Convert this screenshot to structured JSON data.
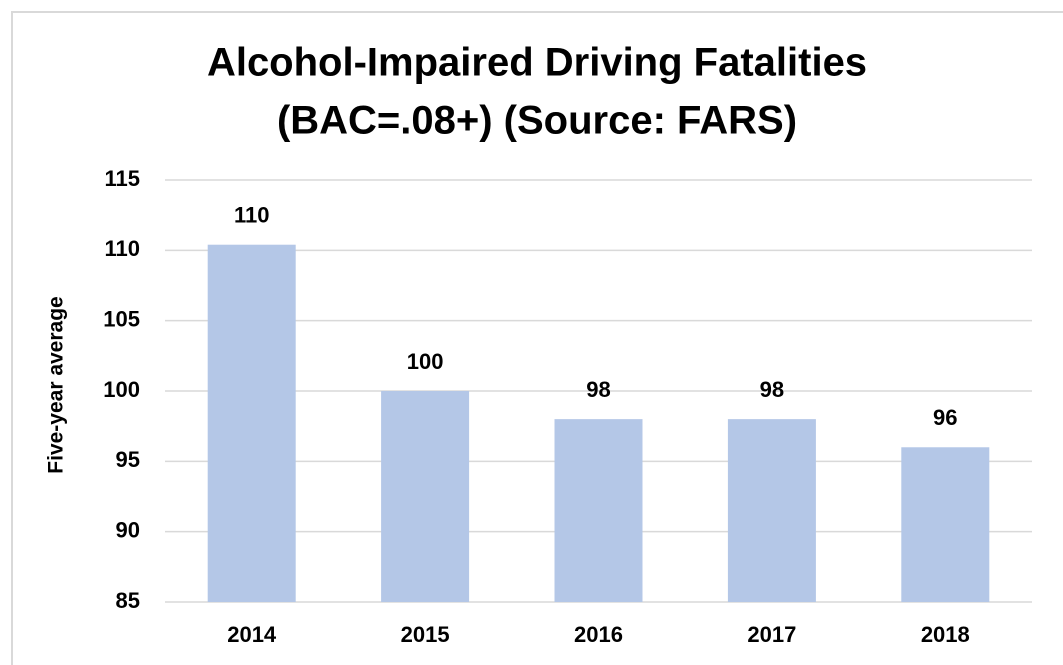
{
  "chart_data": {
    "type": "bar",
    "title": [
      "Alcohol-Impaired Driving Fatalities",
      "(BAC=.08+) (Source: FARS)"
    ],
    "y_label": "Five-year average",
    "categories": [
      "2014",
      "2015",
      "2016",
      "2017",
      "2018"
    ],
    "values": [
      110.4,
      100,
      98,
      98,
      96
    ],
    "value_labels": [
      "110",
      "100",
      "98",
      "98",
      "96"
    ],
    "color": "#b4c7e7",
    "ylim": [
      85,
      115
    ],
    "yticks": [
      85,
      90,
      95,
      100,
      105,
      110,
      115
    ],
    "grid": true
  }
}
